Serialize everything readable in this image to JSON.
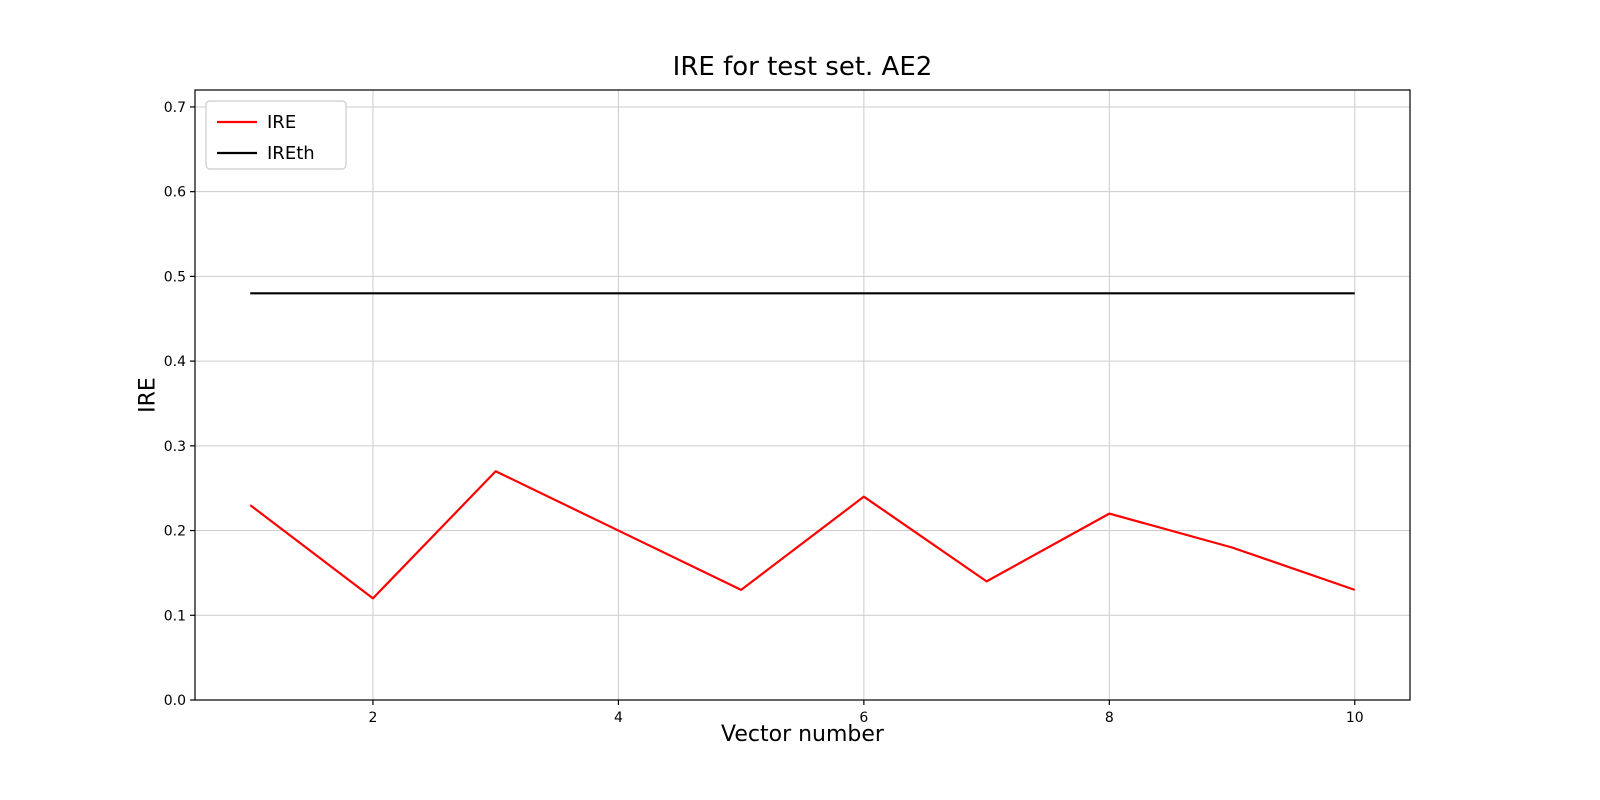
{
  "chart_data": {
    "type": "line",
    "title": "IRE for test set. AE2",
    "xlabel": "Vector number",
    "ylabel": "IRE",
    "x": [
      1,
      2,
      3,
      4,
      5,
      6,
      7,
      8,
      9,
      10
    ],
    "series": [
      {
        "name": "IRE",
        "color": "#ff0000",
        "line_width": 2.2,
        "values": [
          0.23,
          0.12,
          0.27,
          0.2,
          0.13,
          0.24,
          0.14,
          0.22,
          0.18,
          0.13
        ]
      },
      {
        "name": "IREth",
        "color": "#000000",
        "line_width": 2.2,
        "values": [
          0.48,
          0.48,
          0.48,
          0.48,
          0.48,
          0.48,
          0.48,
          0.48,
          0.48,
          0.48
        ]
      }
    ],
    "xlim": [
      0.55,
      10.45
    ],
    "ylim": [
      0.0,
      0.72
    ],
    "xticks": [
      {
        "value": 2,
        "label": "2"
      },
      {
        "value": 4,
        "label": "4"
      },
      {
        "value": 6,
        "label": "6"
      },
      {
        "value": 8,
        "label": "8"
      },
      {
        "value": 10,
        "label": "10"
      }
    ],
    "yticks": [
      {
        "value": 0.0,
        "label": "0.0"
      },
      {
        "value": 0.1,
        "label": "0.1"
      },
      {
        "value": 0.2,
        "label": "0.2"
      },
      {
        "value": 0.3,
        "label": "0.3"
      },
      {
        "value": 0.4,
        "label": "0.4"
      },
      {
        "value": 0.5,
        "label": "0.5"
      },
      {
        "value": 0.6,
        "label": "0.6"
      },
      {
        "value": 0.7,
        "label": "0.7"
      }
    ],
    "grid": true,
    "legend_position": "upper left",
    "colors": {
      "background": "#ffffff",
      "grid": "#cccccc",
      "spine": "#000000",
      "tick_label": "#000000",
      "legend_border": "#cccccc",
      "legend_background": "#ffffff"
    }
  }
}
